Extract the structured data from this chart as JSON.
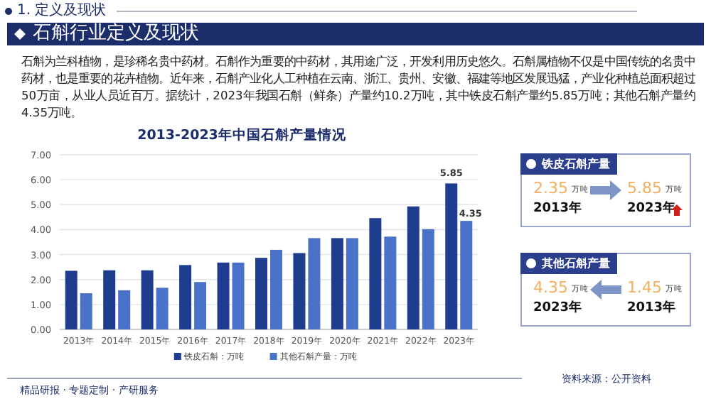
{
  "chart_data": [
    {
      "type": "bar",
      "title": "2013-2023年中国石斛产量情况",
      "categories": [
        "2013年",
        "2014年",
        "2015年",
        "2016年",
        "2017年",
        "2018年",
        "2019年",
        "2020年",
        "2021年",
        "2022年",
        "2023年"
      ],
      "series": [
        {
          "name": "铁皮石斛：万吨",
          "color": "#1f3d8f",
          "values": [
            2.35,
            2.37,
            2.37,
            2.58,
            2.68,
            2.87,
            3.06,
            3.66,
            4.46,
            4.93,
            5.85
          ],
          "value_labels": [
            null,
            null,
            null,
            null,
            null,
            null,
            null,
            null,
            null,
            null,
            "5.85"
          ]
        },
        {
          "name": "其他石斛产量：万吨",
          "color": "#4a72c8",
          "values": [
            1.45,
            1.57,
            1.67,
            1.9,
            2.68,
            3.19,
            3.66,
            3.66,
            3.72,
            4.02,
            4.35
          ],
          "value_labels": [
            null,
            null,
            null,
            null,
            null,
            null,
            null,
            null,
            null,
            null,
            "4.35"
          ]
        }
      ],
      "ylim": [
        0,
        7
      ],
      "yticks": [
        {
          "value": 0,
          "label": "0.00"
        },
        {
          "value": 1,
          "label": "1.00"
        },
        {
          "value": 2,
          "label": "2.00"
        },
        {
          "value": 3,
          "label": "3.00"
        },
        {
          "value": 4,
          "label": "4.00"
        },
        {
          "value": 5,
          "label": "5.00"
        },
        {
          "value": 6,
          "label": "6.00"
        },
        {
          "value": 7,
          "label": "7.00"
        }
      ],
      "grid": "y",
      "legend": "bottom",
      "annotations": [
        "1. 定义及现状",
        "石斛行业定义及现状",
        "石斛为兰科植物，是珍稀名贵中药材。石斛作为重要的中药材，其用途广泛，开发利用历史悠久。石斛属植物不仅是中国传统的名贵中药材，也是重要的花卉植物。近年来，石斛产业化人工种植在云南、浙江、贵州、安徽、福建等地区发展迅猛，产业化种植总面积超过50万亩，从业人员近百万。据统计，2023年我国石斛（鲜条）产量约10.2万吨，其中铁皮石斛产量约5.85万吨；其他石斛产量约4.35万吨。",
        "精品研报 · 专题定制 · 产研服务",
        "资料来源：公开资料"
      ]
    },
    {
      "type": "other",
      "title": "铁皮石斛产量",
      "annotations": [
        "2.35",
        "万吨",
        "2013年",
        "5.85",
        "万吨",
        "2023年"
      ]
    },
    {
      "type": "other",
      "title": "其他石斛产量",
      "annotations": [
        "4.35",
        "万吨",
        "2023年",
        "1.45",
        "万吨",
        "2013年"
      ]
    }
  ]
}
